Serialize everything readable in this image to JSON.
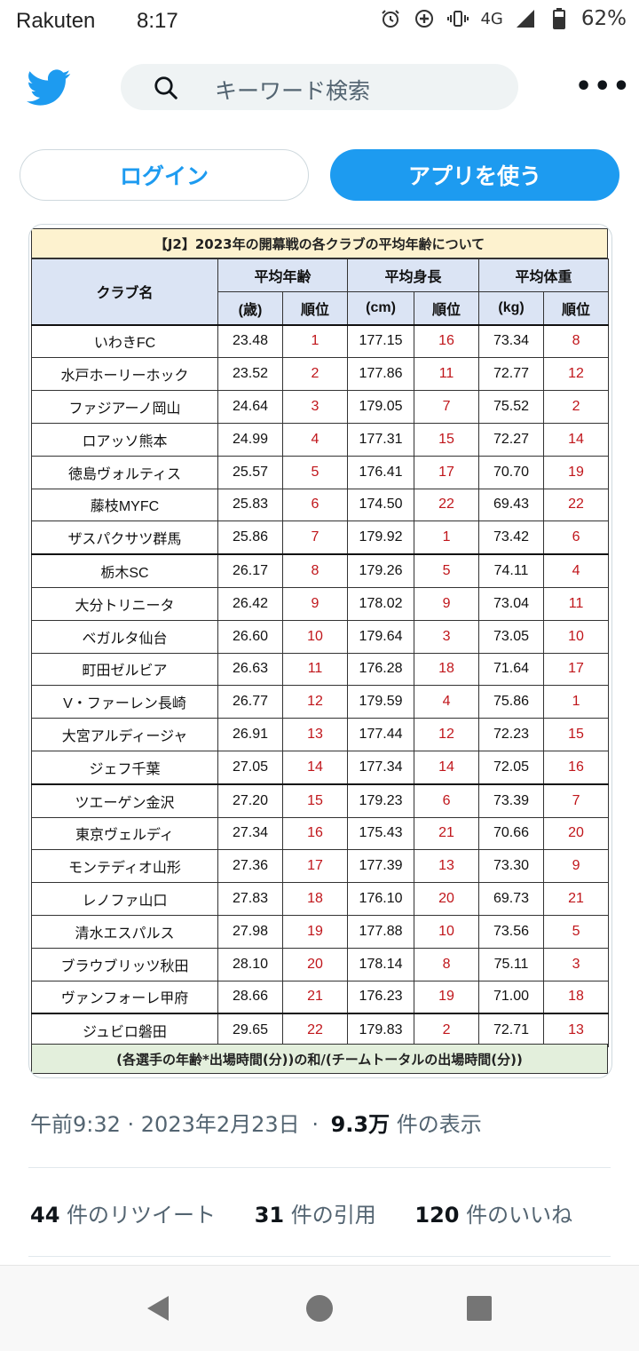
{
  "status_bar": {
    "carrier": "Rakuten",
    "time": "8:17",
    "network": "4G",
    "battery": "62%",
    "icons": [
      "alarm-icon",
      "data-saver-icon",
      "vibrate-icon",
      "signal-icon",
      "battery-icon"
    ]
  },
  "header": {
    "search_placeholder": "キーワード検索",
    "more_label": "•••"
  },
  "buttons": {
    "login": "ログイン",
    "use_app": "アプリを使う"
  },
  "table": {
    "title": "【J2】2023年の開幕戦の各クラブの平均年齢について",
    "header": {
      "club": "クラブ名",
      "age": "平均年齢",
      "height": "平均身長",
      "weight": "平均体重",
      "age_unit": "(歳)",
      "height_unit": "(cm)",
      "weight_unit": "(kg)",
      "rank": "順位"
    },
    "rows": [
      {
        "club": "いわきFC",
        "age": "23.48",
        "age_rank": "1",
        "height": "177.15",
        "height_rank": "16",
        "weight": "73.34",
        "weight_rank": "8"
      },
      {
        "club": "水戸ホーリーホック",
        "age": "23.52",
        "age_rank": "2",
        "height": "177.86",
        "height_rank": "11",
        "weight": "72.77",
        "weight_rank": "12"
      },
      {
        "club": "ファジアーノ岡山",
        "age": "24.64",
        "age_rank": "3",
        "height": "179.05",
        "height_rank": "7",
        "weight": "75.52",
        "weight_rank": "2"
      },
      {
        "club": "ロアッソ熊本",
        "age": "24.99",
        "age_rank": "4",
        "height": "177.31",
        "height_rank": "15",
        "weight": "72.27",
        "weight_rank": "14"
      },
      {
        "club": "徳島ヴォルティス",
        "age": "25.57",
        "age_rank": "5",
        "height": "176.41",
        "height_rank": "17",
        "weight": "70.70",
        "weight_rank": "19"
      },
      {
        "club": "藤枝MYFC",
        "age": "25.83",
        "age_rank": "6",
        "height": "174.50",
        "height_rank": "22",
        "weight": "69.43",
        "weight_rank": "22"
      },
      {
        "club": "ザスパクサツ群馬",
        "age": "25.86",
        "age_rank": "7",
        "height": "179.92",
        "height_rank": "1",
        "weight": "73.42",
        "weight_rank": "6"
      },
      {
        "club": "栃木SC",
        "age": "26.17",
        "age_rank": "8",
        "height": "179.26",
        "height_rank": "5",
        "weight": "74.11",
        "weight_rank": "4"
      },
      {
        "club": "大分トリニータ",
        "age": "26.42",
        "age_rank": "9",
        "height": "178.02",
        "height_rank": "9",
        "weight": "73.04",
        "weight_rank": "11"
      },
      {
        "club": "ベガルタ仙台",
        "age": "26.60",
        "age_rank": "10",
        "height": "179.64",
        "height_rank": "3",
        "weight": "73.05",
        "weight_rank": "10"
      },
      {
        "club": "町田ゼルビア",
        "age": "26.63",
        "age_rank": "11",
        "height": "176.28",
        "height_rank": "18",
        "weight": "71.64",
        "weight_rank": "17"
      },
      {
        "club": "V・ファーレン長崎",
        "age": "26.77",
        "age_rank": "12",
        "height": "179.59",
        "height_rank": "4",
        "weight": "75.86",
        "weight_rank": "1"
      },
      {
        "club": "大宮アルディージャ",
        "age": "26.91",
        "age_rank": "13",
        "height": "177.44",
        "height_rank": "12",
        "weight": "72.23",
        "weight_rank": "15"
      },
      {
        "club": "ジェフ千葉",
        "age": "27.05",
        "age_rank": "14",
        "height": "177.34",
        "height_rank": "14",
        "weight": "72.05",
        "weight_rank": "16"
      },
      {
        "club": "ツエーゲン金沢",
        "age": "27.20",
        "age_rank": "15",
        "height": "179.23",
        "height_rank": "6",
        "weight": "73.39",
        "weight_rank": "7"
      },
      {
        "club": "東京ヴェルディ",
        "age": "27.34",
        "age_rank": "16",
        "height": "175.43",
        "height_rank": "21",
        "weight": "70.66",
        "weight_rank": "20"
      },
      {
        "club": "モンテディオ山形",
        "age": "27.36",
        "age_rank": "17",
        "height": "177.39",
        "height_rank": "13",
        "weight": "73.30",
        "weight_rank": "9"
      },
      {
        "club": "レノファ山口",
        "age": "27.83",
        "age_rank": "18",
        "height": "176.10",
        "height_rank": "20",
        "weight": "69.73",
        "weight_rank": "21"
      },
      {
        "club": "清水エスパルス",
        "age": "27.98",
        "age_rank": "19",
        "height": "177.88",
        "height_rank": "10",
        "weight": "73.56",
        "weight_rank": "5"
      },
      {
        "club": "ブラウブリッツ秋田",
        "age": "28.10",
        "age_rank": "20",
        "height": "178.14",
        "height_rank": "8",
        "weight": "75.11",
        "weight_rank": "3"
      },
      {
        "club": "ヴァンフォーレ甲府",
        "age": "28.66",
        "age_rank": "21",
        "height": "176.23",
        "height_rank": "19",
        "weight": "71.00",
        "weight_rank": "18"
      },
      {
        "club": "ジュビロ磐田",
        "age": "29.65",
        "age_rank": "22",
        "height": "179.83",
        "height_rank": "2",
        "weight": "72.71",
        "weight_rank": "13"
      }
    ],
    "footnote": "(各選手の年齢*出場時間(分))の和/(チームトータルの出場時間(分))"
  },
  "tweet_meta": {
    "timestamp": "午前9:32 · 2023年2月23日",
    "separator": "·",
    "views_count": "9.3万",
    "views_label": "件の表示"
  },
  "engagement": {
    "retweets_count": "44",
    "retweets_label": "件のリツイート",
    "quotes_count": "31",
    "quotes_label": "件の引用",
    "likes_count": "120",
    "likes_label": "件のいいね"
  },
  "colors": {
    "accent": "#1d9bf0",
    "rank_red": "#c0161b",
    "title_bg": "#fdf2cf",
    "header_bg": "#dbe4f4",
    "footer_bg": "#e3efdc"
  }
}
